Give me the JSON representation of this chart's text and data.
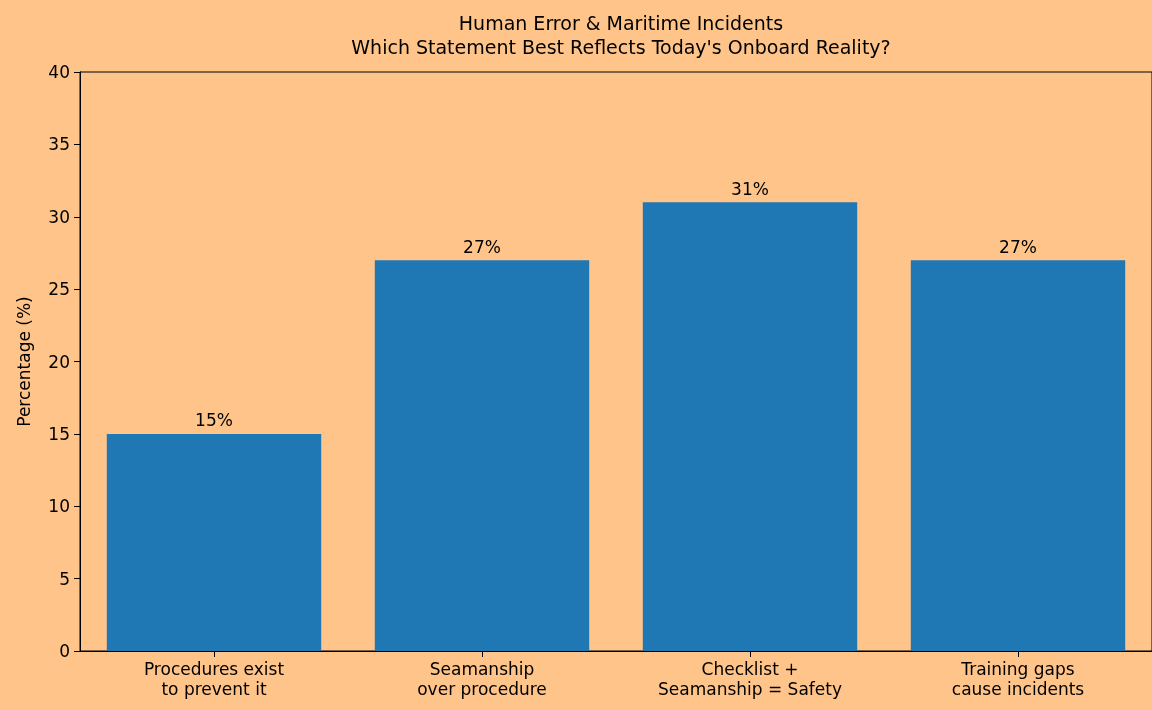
{
  "chart_data": {
    "type": "bar",
    "title": "Human Error & Maritime Incidents\nWhich Statement Best Reflects Today's Onboard Reality?",
    "ylabel": "Percentage (%)",
    "categories": [
      "Procedures exist\nto prevent it",
      "Seamanship\nover procedure",
      "Checklist +\nSeamanship = Safety",
      "Training gaps\ncause incidents"
    ],
    "values": [
      15,
      27,
      31,
      27
    ],
    "color": "#1f77b4",
    "value_labels": [
      "15%",
      "27%",
      "31%",
      "27%"
    ],
    "ylim": [
      0,
      40
    ],
    "yticks": [
      0,
      5,
      10,
      15,
      20,
      25,
      30,
      35,
      40
    ],
    "grid": false
  }
}
